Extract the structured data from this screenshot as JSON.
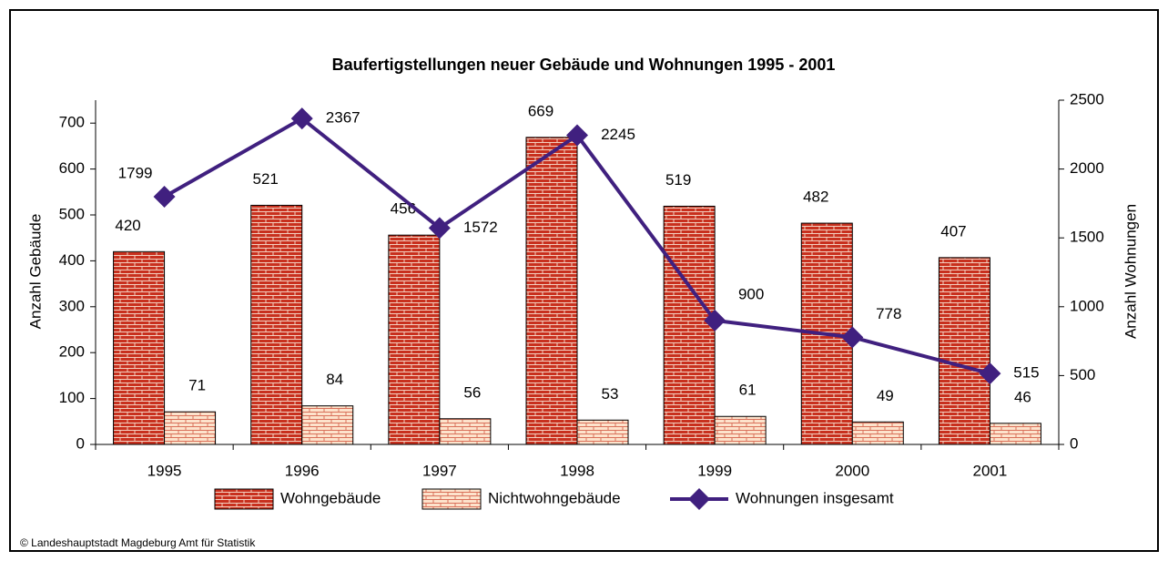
{
  "chart_data": {
    "type": "bar",
    "title": "Baufertigstellungen neuer Gebäude und Wohnungen 1995 - 2001",
    "categories": [
      "1995",
      "1996",
      "1997",
      "1998",
      "1999",
      "2000",
      "2001"
    ],
    "series": [
      {
        "name": "Wohngebäude",
        "color": "#c8301e",
        "values": [
          420,
          521,
          456,
          669,
          519,
          482,
          407
        ]
      },
      {
        "name": "Nichtwohngebäude",
        "color": "#fde3cc",
        "values": [
          71,
          84,
          56,
          53,
          61,
          49,
          46
        ]
      },
      {
        "name": "Wohnungen insgesamt",
        "color": "#40207f",
        "type": "line",
        "axis": "y2",
        "values": [
          1799,
          2367,
          1572,
          2245,
          900,
          778,
          515
        ]
      }
    ],
    "ylabel": "Anzahl Gebäude",
    "y2label": "Anzahl Wohnungen",
    "ylim": [
      0,
      750
    ],
    "yticks": [
      0,
      100,
      200,
      300,
      400,
      500,
      600,
      700
    ],
    "y2lim": [
      0,
      2500
    ],
    "y2ticks": [
      0,
      500,
      1000,
      1500,
      2000,
      2500
    ],
    "legend": "bottom",
    "source": "© Landeshauptstadt Magdeburg  Amt für Statistik"
  }
}
